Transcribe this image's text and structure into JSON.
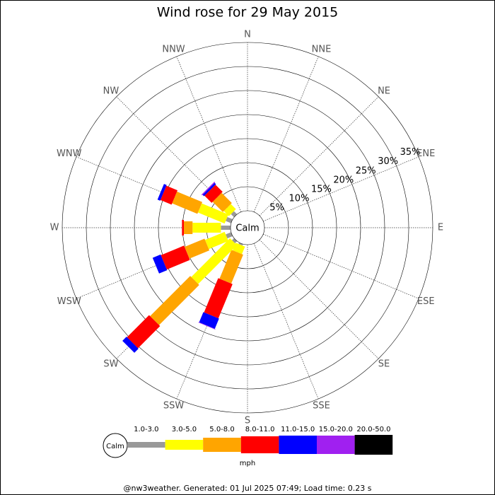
{
  "chart_data": {
    "type": "windrose",
    "title": "Wind rose for 29 May 2015",
    "categories": [
      "N",
      "NNE",
      "NE",
      "ENE",
      "E",
      "ESE",
      "SE",
      "SSE",
      "S",
      "SSW",
      "SW",
      "WSW",
      "W",
      "WNW",
      "NW",
      "NNW"
    ],
    "calm_label": "Calm",
    "rlim": [
      0,
      35
    ],
    "rticks": [
      {
        "value": 5,
        "label": "5%"
      },
      {
        "value": 10,
        "label": "10%"
      },
      {
        "value": 15,
        "label": "15%"
      },
      {
        "value": 20,
        "label": "20%"
      },
      {
        "value": 25,
        "label": "25%"
      },
      {
        "value": 30,
        "label": "30%"
      },
      {
        "value": 35,
        "label": "35%"
      }
    ],
    "series": [
      {
        "name": "1.0-3.0",
        "color": "#999999",
        "values": [
          0,
          0,
          0,
          0,
          0,
          0,
          0,
          0,
          0,
          0.3,
          0.6,
          1.2,
          2.0,
          1.2,
          0.9,
          0
        ]
      },
      {
        "name": "3.0-5.0",
        "color": "#ffff00",
        "values": [
          0,
          0,
          0,
          0,
          0,
          0,
          0,
          0,
          0,
          1.7,
          11.4,
          4.4,
          5.9,
          6.0,
          1.5,
          0
        ]
      },
      {
        "name": "5.0-8.0",
        "color": "#ffa500",
        "values": [
          0,
          0,
          0,
          0,
          0,
          0,
          0,
          0,
          0,
          6.5,
          11.8,
          4.5,
          1.8,
          5.7,
          3.0,
          0
        ]
      },
      {
        "name": "8.0-11.0",
        "color": "#ff0000",
        "values": [
          0,
          0,
          0,
          0,
          0,
          0,
          0,
          0,
          0,
          7.7,
          6.5,
          5.2,
          0.4,
          2.5,
          2.1,
          0
        ]
      },
      {
        "name": "11.0-15.0",
        "color": "#0000ff",
        "values": [
          0,
          0,
          0,
          0,
          0,
          0,
          0,
          0,
          0,
          2.3,
          1.2,
          1.8,
          0,
          0.6,
          0.4,
          0
        ]
      },
      {
        "name": "15.0-20.0",
        "color": "#a020f0",
        "values": [
          0,
          0,
          0,
          0,
          0,
          0,
          0,
          0,
          0,
          0.1,
          0,
          0,
          0,
          0,
          0.2,
          0
        ]
      },
      {
        "name": "20.0-50.0",
        "color": "#000000",
        "values": [
          0,
          0,
          0,
          0,
          0,
          0,
          0,
          0,
          0,
          0,
          0,
          0,
          0,
          0,
          0,
          0
        ]
      }
    ],
    "legend_unit": "mph",
    "footer": "@nw3weather. Generated: 01 Jul 2025 07:49; Load time: 0.23 s"
  }
}
